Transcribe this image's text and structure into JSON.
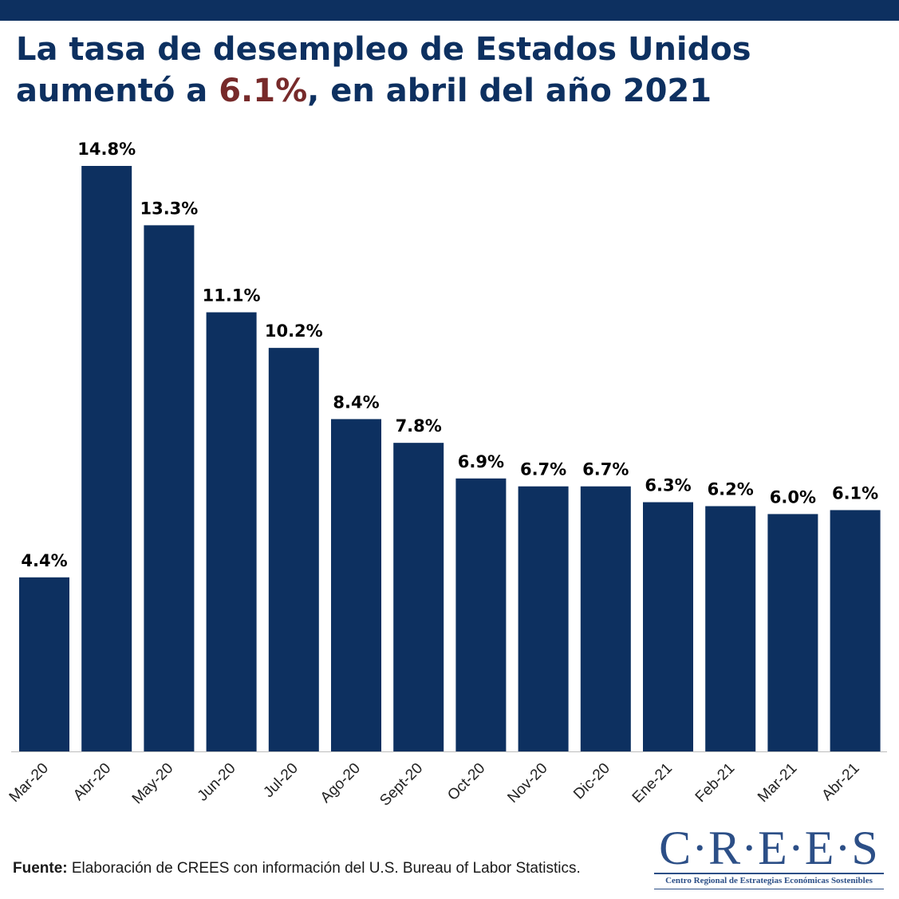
{
  "header": {
    "title_part1": "La tasa de desempleo de Estados Unidos",
    "title_part2": "aumentó a ",
    "title_highlight": "6.1%",
    "title_part3": ", en abril del año 2021"
  },
  "colors": {
    "bar": "#0d3060",
    "highlight": "#772a2a",
    "label": "#000000",
    "axis_line": "#bdbdbd"
  },
  "chart_data": {
    "type": "bar",
    "title": "La tasa de desempleo de Estados Unidos aumentó a 6.1%, en abril del año 2021",
    "xlabel": "",
    "ylabel": "",
    "categories": [
      "Mar-20",
      "Abr-20",
      "May-20",
      "Jun-20",
      "Jul-20",
      "Ago-20",
      "Sept-20",
      "Oct-20",
      "Nov-20",
      "Dic-20",
      "Ene-21",
      "Feb-21",
      "Mar-21",
      "Abr-21"
    ],
    "values": [
      4.4,
      14.8,
      13.3,
      11.1,
      10.2,
      8.4,
      7.8,
      6.9,
      6.7,
      6.7,
      6.3,
      6.2,
      6.0,
      6.1
    ],
    "data_labels": [
      "4.4%",
      "14.8%",
      "13.3%",
      "11.1%",
      "10.2%",
      "8.4%",
      "7.8%",
      "6.9%",
      "6.7%",
      "6.7%",
      "6.3%",
      "6.2%",
      "6.0%",
      "6.1%"
    ],
    "ylim": [
      0,
      14.8
    ],
    "grid": false,
    "legend": "none"
  },
  "footer": {
    "source_label": "Fuente:",
    "source_text": " Elaboración de CREES con información del U.S. Bureau of Labor Statistics."
  },
  "logo": {
    "wordmark": "C·R·E·E·S",
    "subtitle": "Centro Regional de Estrategias Económicas Sostenibles"
  }
}
